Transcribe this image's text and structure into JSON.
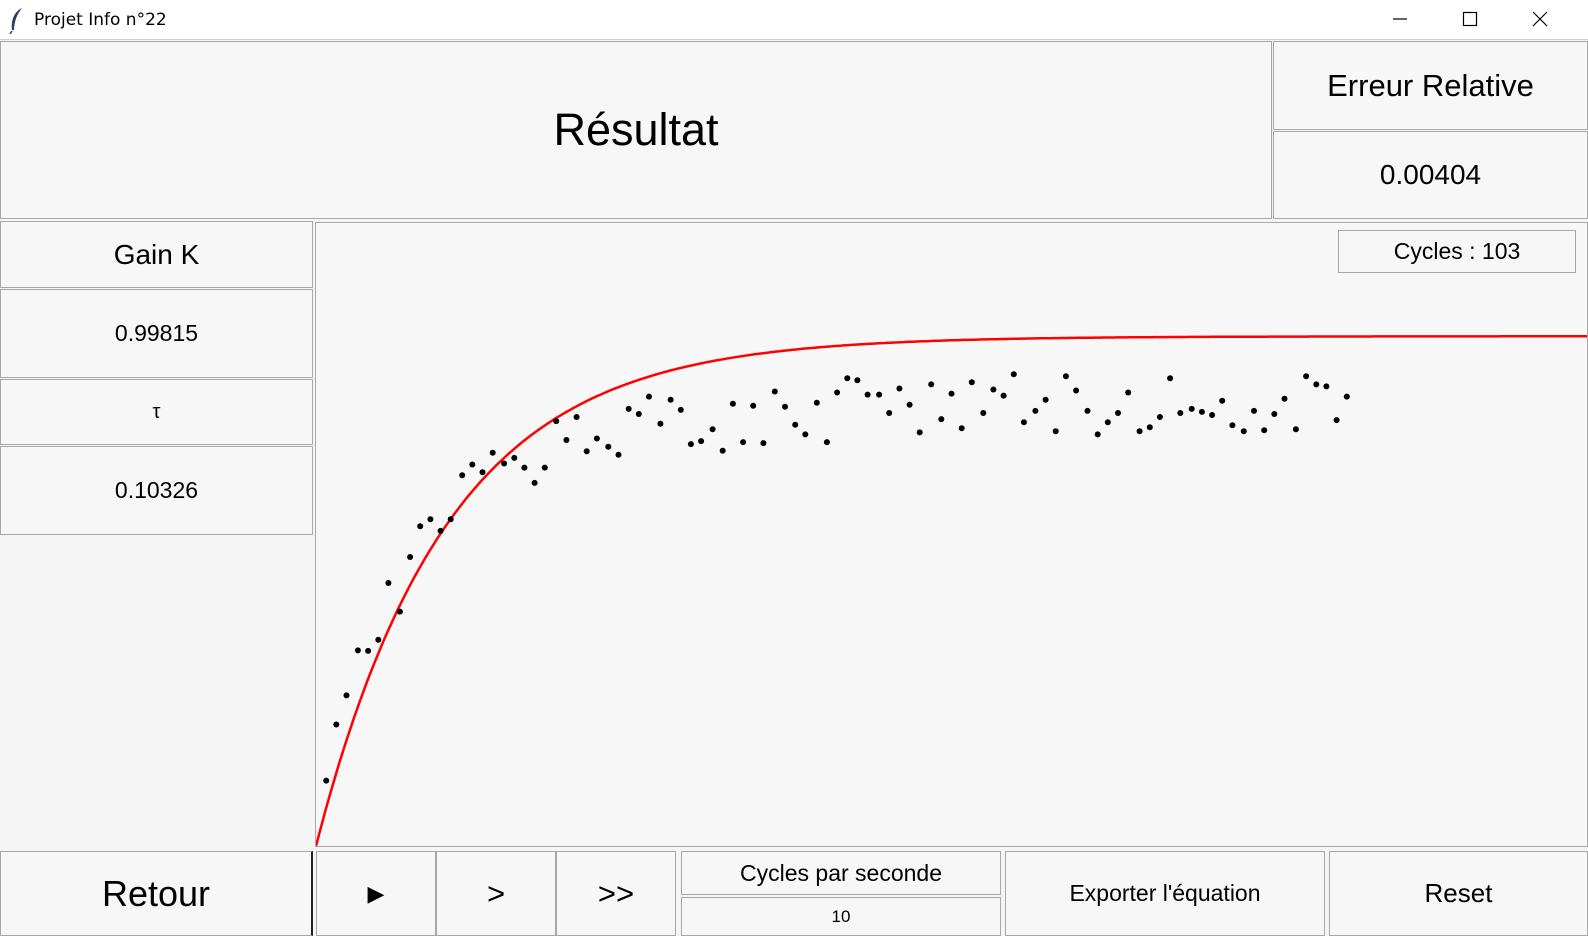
{
  "window": {
    "title": "Projet Info n°22"
  },
  "header": {
    "title": "Résultat"
  },
  "relative_error": {
    "label": "Erreur Relative",
    "value": "0.00404"
  },
  "gain": {
    "label": "Gain K",
    "value": "0.99815"
  },
  "tau": {
    "label": "τ",
    "value": "0.10326"
  },
  "cycles_badge": "Cycles : 103",
  "controls": {
    "back": "Retour",
    "play": "▶",
    "step": ">",
    "fast": ">>",
    "cps_label": "Cycles par seconde",
    "cps_value": "10",
    "export": "Exporter l'équation",
    "reset": "Reset"
  },
  "colors": {
    "fit_curve": "#ff0000",
    "points": "#000000",
    "background": "#f7f7f7"
  },
  "chart_data": {
    "type": "scatter",
    "title": "",
    "xlabel": "",
    "ylabel": "",
    "x_range": [
      0,
      1
    ],
    "y_range": [
      0,
      1.22
    ],
    "fit": {
      "K": 0.99815,
      "tau": 0.10326
    },
    "points": [
      [
        0.008,
        0.128
      ],
      [
        0.016,
        0.238
      ],
      [
        0.024,
        0.295
      ],
      [
        0.033,
        0.383
      ],
      [
        0.041,
        0.382
      ],
      [
        0.049,
        0.404
      ],
      [
        0.057,
        0.515
      ],
      [
        0.066,
        0.459
      ],
      [
        0.074,
        0.566
      ],
      [
        0.082,
        0.626
      ],
      [
        0.09,
        0.64
      ],
      [
        0.098,
        0.617
      ],
      [
        0.106,
        0.64
      ],
      [
        0.115,
        0.726
      ],
      [
        0.123,
        0.747
      ],
      [
        0.131,
        0.732
      ],
      [
        0.139,
        0.77
      ],
      [
        0.148,
        0.749
      ],
      [
        0.156,
        0.76
      ],
      [
        0.164,
        0.741
      ],
      [
        0.172,
        0.711
      ],
      [
        0.18,
        0.741
      ],
      [
        0.189,
        0.832
      ],
      [
        0.197,
        0.795
      ],
      [
        0.205,
        0.84
      ],
      [
        0.213,
        0.773
      ],
      [
        0.221,
        0.798
      ],
      [
        0.23,
        0.782
      ],
      [
        0.238,
        0.766
      ],
      [
        0.246,
        0.856
      ],
      [
        0.254,
        0.846
      ],
      [
        0.262,
        0.88
      ],
      [
        0.271,
        0.827
      ],
      [
        0.279,
        0.874
      ],
      [
        0.287,
        0.854
      ],
      [
        0.295,
        0.787
      ],
      [
        0.303,
        0.793
      ],
      [
        0.312,
        0.816
      ],
      [
        0.32,
        0.774
      ],
      [
        0.328,
        0.866
      ],
      [
        0.336,
        0.791
      ],
      [
        0.344,
        0.862
      ],
      [
        0.352,
        0.789
      ],
      [
        0.361,
        0.89
      ],
      [
        0.369,
        0.86
      ],
      [
        0.377,
        0.825
      ],
      [
        0.385,
        0.806
      ],
      [
        0.394,
        0.868
      ],
      [
        0.402,
        0.791
      ],
      [
        0.41,
        0.888
      ],
      [
        0.418,
        0.916
      ],
      [
        0.426,
        0.912
      ],
      [
        0.434,
        0.884
      ],
      [
        0.443,
        0.884
      ],
      [
        0.451,
        0.848
      ],
      [
        0.459,
        0.896
      ],
      [
        0.467,
        0.864
      ],
      [
        0.475,
        0.81
      ],
      [
        0.484,
        0.904
      ],
      [
        0.492,
        0.836
      ],
      [
        0.5,
        0.886
      ],
      [
        0.508,
        0.818
      ],
      [
        0.516,
        0.908
      ],
      [
        0.525,
        0.848
      ],
      [
        0.533,
        0.894
      ],
      [
        0.541,
        0.882
      ],
      [
        0.549,
        0.924
      ],
      [
        0.557,
        0.83
      ],
      [
        0.566,
        0.852
      ],
      [
        0.574,
        0.874
      ],
      [
        0.582,
        0.812
      ],
      [
        0.59,
        0.92
      ],
      [
        0.598,
        0.892
      ],
      [
        0.607,
        0.852
      ],
      [
        0.615,
        0.806
      ],
      [
        0.623,
        0.83
      ],
      [
        0.631,
        0.848
      ],
      [
        0.639,
        0.888
      ],
      [
        0.648,
        0.812
      ],
      [
        0.656,
        0.82
      ],
      [
        0.664,
        0.84
      ],
      [
        0.672,
        0.916
      ],
      [
        0.68,
        0.848
      ],
      [
        0.689,
        0.856
      ],
      [
        0.697,
        0.85
      ],
      [
        0.705,
        0.844
      ],
      [
        0.713,
        0.872
      ],
      [
        0.721,
        0.824
      ],
      [
        0.73,
        0.812
      ],
      [
        0.738,
        0.852
      ],
      [
        0.746,
        0.814
      ],
      [
        0.754,
        0.846
      ],
      [
        0.762,
        0.876
      ],
      [
        0.771,
        0.816
      ],
      [
        0.779,
        0.92
      ],
      [
        0.787,
        0.904
      ],
      [
        0.795,
        0.9
      ],
      [
        0.803,
        0.834
      ],
      [
        0.811,
        0.88
      ]
    ]
  }
}
